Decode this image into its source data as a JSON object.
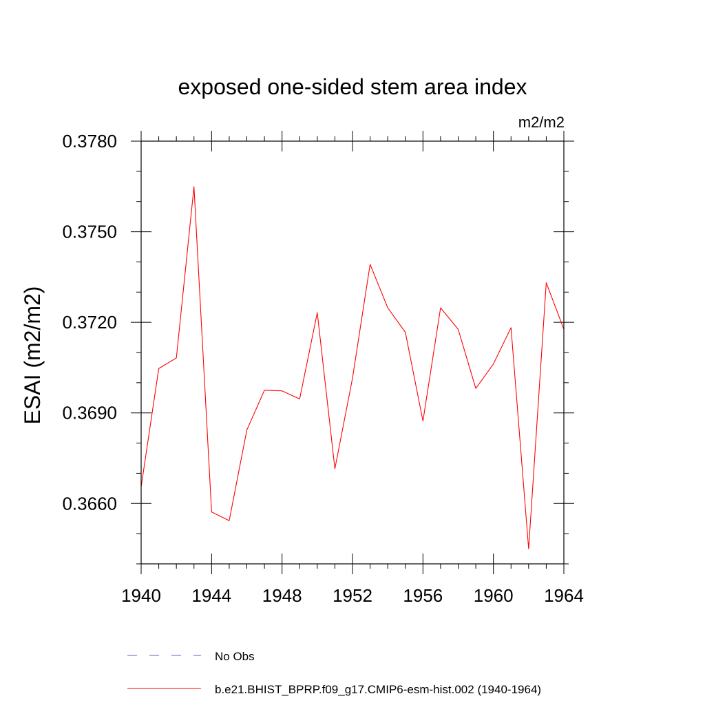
{
  "chart_data": {
    "type": "line",
    "title": "exposed one-sided stem area index",
    "units": "m2/m2",
    "xlabel": "",
    "ylabel": "ESAI  (m2/m2)",
    "xlim": [
      1940,
      1964
    ],
    "ylim": [
      0.364,
      0.378
    ],
    "x_ticks": [
      1940,
      1944,
      1948,
      1952,
      1956,
      1960,
      1964
    ],
    "x_tick_labels": [
      "1940",
      "1944",
      "1948",
      "1952",
      "1956",
      "1960",
      "1964"
    ],
    "y_ticks": [
      0.366,
      0.369,
      0.372,
      0.375,
      0.378
    ],
    "y_tick_labels": [
      "0.3660",
      "0.3690",
      "0.3720",
      "0.3750",
      "0.3780"
    ],
    "x_minor_step": 1,
    "y_minor_step": 0.001,
    "grid": false,
    "series": [
      {
        "name": "b.e21.BHIST_BPRP.f09_g17.CMIP6-esm-hist.002 (1940-1964)",
        "color": "#ff0000",
        "style": "solid",
        "x": [
          1940,
          1941,
          1942,
          1943,
          1944,
          1945,
          1946,
          1947,
          1948,
          1949,
          1950,
          1951,
          1952,
          1953,
          1954,
          1955,
          1956,
          1957,
          1958,
          1959,
          1960,
          1961,
          1962,
          1963,
          1964
        ],
        "values": [
          0.36655,
          0.37047,
          0.37082,
          0.37649,
          0.36572,
          0.36543,
          0.36843,
          0.36975,
          0.36973,
          0.36946,
          0.37232,
          0.36715,
          0.37015,
          0.37392,
          0.37248,
          0.37167,
          0.36873,
          0.37248,
          0.37177,
          0.36981,
          0.37062,
          0.37182,
          0.3645,
          0.37331,
          0.37177
        ]
      }
    ],
    "legend": {
      "placement": "bottom-left",
      "entries": [
        {
          "label": "No Obs",
          "color": "#6a5acd",
          "style": "dashed"
        },
        {
          "label": "b.e21.BHIST_BPRP.f09_g17.CMIP6-esm-hist.002 (1940-1964)",
          "color": "#ff0000",
          "style": "solid"
        }
      ]
    }
  }
}
